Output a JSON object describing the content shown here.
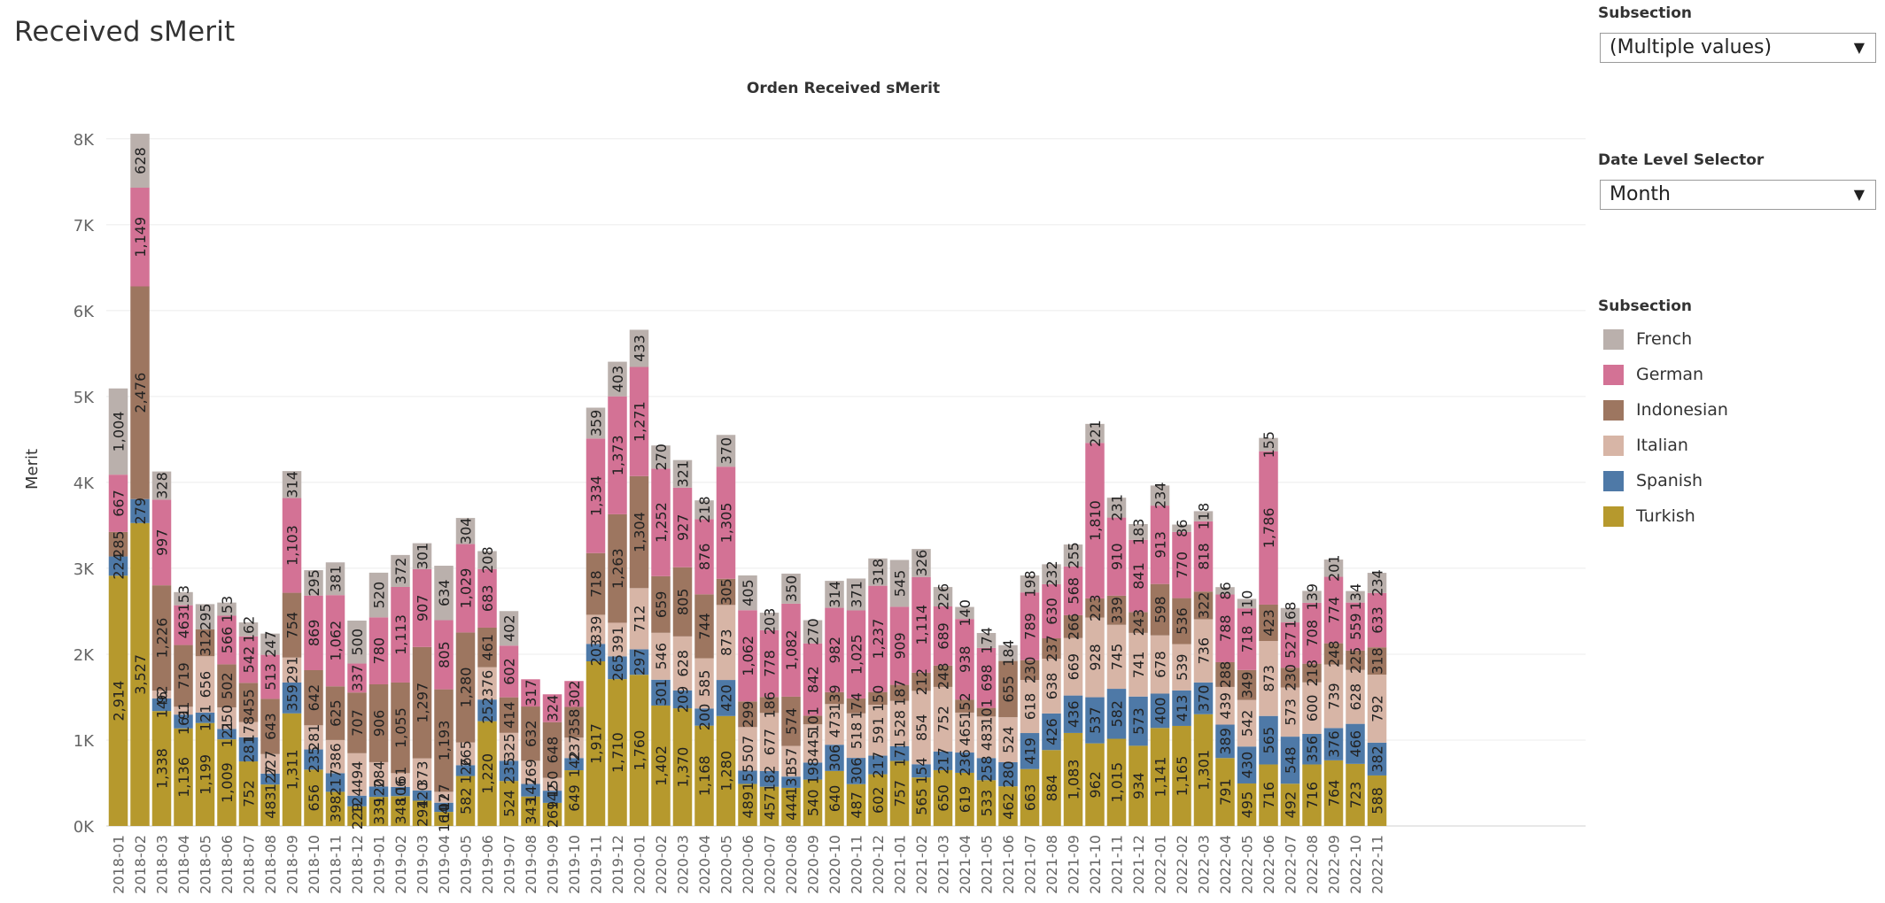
{
  "page_title": "Received sMerit",
  "filters": {
    "subsection_label": "Subsection",
    "subsection_value": "(Multiple values)",
    "date_level_label": "Date Level Selector",
    "date_level_value": "Month"
  },
  "legend": {
    "title": "Subsection",
    "items": [
      {
        "label": "French",
        "color": "#bab0ac"
      },
      {
        "label": "German",
        "color": "#d37295"
      },
      {
        "label": "Indonesian",
        "color": "#9d7660"
      },
      {
        "label": "Italian",
        "color": "#d7b5a6"
      },
      {
        "label": "Spanish",
        "color": "#4e79a7"
      },
      {
        "label": "Turkish",
        "color": "#b6992d"
      }
    ]
  },
  "chart_data": {
    "type": "bar",
    "stacked": true,
    "title": "Orden Received sMerit",
    "ylabel": "Merit",
    "xlabel": "",
    "ylim": [
      0,
      8400
    ],
    "yticks": [
      "0K",
      "1K",
      "2K",
      "3K",
      "4K",
      "5K",
      "6K",
      "7K",
      "8K"
    ],
    "grid": true,
    "legend_position": "right",
    "categories": [
      "2018-01",
      "2018-02",
      "2018-03",
      "2018-04",
      "2018-05",
      "2018-06",
      "2018-07",
      "2018-08",
      "2018-09",
      "2018-10",
      "2018-11",
      "2018-12",
      "2019-01",
      "2019-02",
      "2019-03",
      "2019-04",
      "2019-05",
      "2019-06",
      "2019-07",
      "2019-08",
      "2019-09",
      "2019-10",
      "2019-11",
      "2019-12",
      "2020-01",
      "2020-02",
      "2020-03",
      "2020-04",
      "2020-05",
      "2020-06",
      "2020-07",
      "2020-08",
      "2020-09",
      "2020-10",
      "2020-11",
      "2020-12",
      "2021-01",
      "2021-02",
      "2021-03",
      "2021-04",
      "2021-05",
      "2021-06",
      "2021-07",
      "2021-08",
      "2021-09",
      "2021-10",
      "2021-11",
      "2021-12",
      "2022-01",
      "2022-02",
      "2022-03",
      "2022-04",
      "2022-05",
      "2022-06",
      "2022-07",
      "2022-08",
      "2022-09",
      "2022-10",
      "2022-11"
    ],
    "series": [
      {
        "name": "Turkish",
        "color": "#b6992d",
        "values": [
          2914,
          3527,
          1338,
          1136,
          1199,
          1009,
          752,
          483,
          1311,
          656,
          398,
          229,
          339,
          348,
          294,
          164,
          582,
          1220,
          524,
          343,
          269,
          649,
          1917,
          1710,
          1760,
          1402,
          1370,
          1168,
          1280,
          489,
          457,
          444,
          540,
          640,
          487,
          602,
          757,
          565,
          650,
          619,
          533,
          462,
          663,
          884,
          1083,
          962,
          1015,
          934,
          1141,
          1165,
          1301,
          791,
          495,
          716,
          492,
          716,
          764,
          723,
          588
        ]
      },
      {
        "name": "Spanish",
        "color": "#4e79a7",
        "values": [
          224,
          279,
          146,
          161,
          121,
          121,
          281,
          127,
          359,
          235,
          217,
          124,
          120,
          106,
          120,
          107,
          126,
          252,
          235,
          147,
          142,
          142,
          203,
          265,
          297,
          301,
          209,
          200,
          420,
          155,
          182,
          131,
          198,
          306,
          306,
          217,
          171,
          154,
          217,
          236,
          258,
          280,
          419,
          426,
          436,
          537,
          582,
          573,
          400,
          413,
          370,
          389,
          430,
          565,
          548,
          356,
          376,
          466,
          382
        ]
      },
      {
        "name": "Italian",
        "color": "#d7b5a6",
        "values": [
          0,
          0,
          92,
          91,
          656,
          250,
          178,
          227,
          291,
          281,
          386,
          494,
          284,
          161,
          373,
          127,
          265,
          376,
          325,
          269,
          150,
          237,
          339,
          391,
          712,
          546,
          628,
          585,
          873,
          507,
          677,
          357,
          445,
          473,
          518,
          591,
          528,
          854,
          752,
          465,
          483,
          524,
          618,
          638,
          669,
          928,
          745,
          741,
          678,
          539,
          736,
          439,
          542,
          873,
          573,
          600,
          739,
          628,
          792
        ]
      },
      {
        "name": "Indonesian",
        "color": "#9d7660",
        "values": [
          285,
          2476,
          1226,
          719,
          312,
          502,
          455,
          643,
          754,
          642,
          625,
          707,
          906,
          1055,
          1297,
          1193,
          1280,
          461,
          414,
          632,
          648,
          358,
          718,
          1263,
          1304,
          659,
          805,
          744,
          305,
          299,
          186,
          574,
          101,
          139,
          174,
          150,
          187,
          212,
          248,
          152,
          101,
          655,
          230,
          237,
          266,
          223,
          339,
          243,
          598,
          536,
          322,
          288,
          349,
          423,
          230,
          218,
          248,
          225,
          318
        ]
      },
      {
        "name": "German",
        "color": "#d37295",
        "values": [
          667,
          1149,
          997,
          463,
          0,
          566,
          542,
          513,
          1103,
          869,
          1062,
          337,
          780,
          1113,
          907,
          805,
          1029,
          683,
          602,
          317,
          324,
          302,
          1334,
          1373,
          1271,
          1252,
          927,
          876,
          1305,
          1062,
          778,
          1082,
          842,
          982,
          1025,
          1237,
          909,
          1114,
          689,
          938,
          698,
          0,
          789,
          630,
          568,
          1810,
          910,
          841,
          913,
          770,
          818,
          788,
          718,
          1786,
          527,
          708,
          774,
          559,
          633
        ]
      },
      {
        "name": "French",
        "color": "#bab0ac",
        "values": [
          1004,
          628,
          328,
          153,
          295,
          153,
          162,
          247,
          314,
          295,
          381,
          500,
          520,
          372,
          301,
          634,
          304,
          208,
          402,
          0,
          0,
          0,
          359,
          403,
          433,
          270,
          321,
          218,
          370,
          405,
          203,
          350,
          270,
          314,
          371,
          318,
          545,
          326,
          226,
          140,
          174,
          184,
          198,
          232,
          255,
          221,
          231,
          183,
          234,
          86,
          118,
          86,
          110,
          155,
          168,
          139,
          201,
          134,
          234
        ]
      }
    ]
  }
}
